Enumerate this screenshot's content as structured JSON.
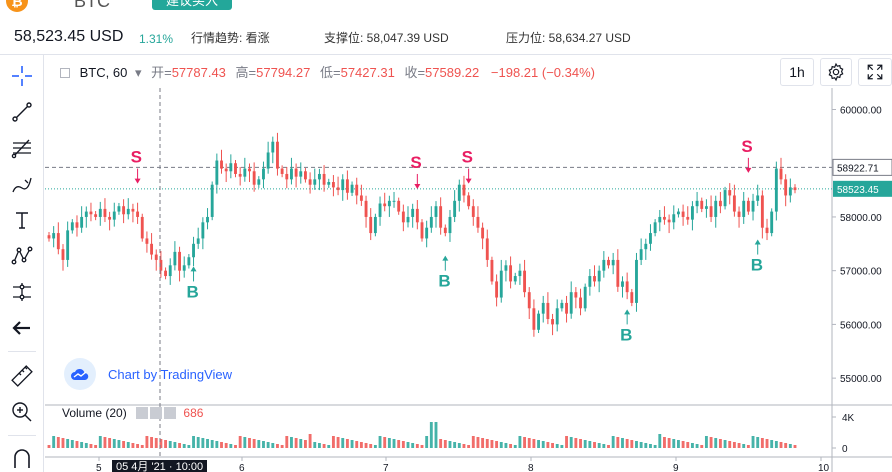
{
  "header": {
    "coin_symbol": "BTC",
    "coin_icon": "bitcoin-icon",
    "advice_badge": "建议买入",
    "price": "58,523.45 USD",
    "change": "1.31%",
    "trend_label": "行情趋势: 看涨",
    "support_label": "支撑位: 58,047.39 USD",
    "resistance_label": "压力位: 58,634.27 USD"
  },
  "legend": {
    "symbol": "BTC, 60",
    "open_label": "开=",
    "open": "57787.43",
    "high_label": "高=",
    "high": "57794.27",
    "low_label": "低=",
    "low": "57427.31",
    "close_label": "收=",
    "close": "57589.22",
    "change": "−198.21 (−0.34%)"
  },
  "controls": {
    "interval": "1h"
  },
  "branding": {
    "text": "Chart by TradingView"
  },
  "volume": {
    "label": "Volume (20)",
    "value": "686"
  },
  "crosshair": {
    "time_label": "05 4月 '21 · 10:00"
  },
  "colors": {
    "up": "#26a69a",
    "down": "#ef5350",
    "signal_sell": "#e91e63",
    "signal_buy": "#26a69a",
    "accent": "#2962ff"
  },
  "toolbar": [
    "crosshair-icon",
    "trend-line-icon",
    "fib-icon",
    "brush-icon",
    "text-icon",
    "pattern-icon",
    "measure-icon",
    "back-arrow-icon",
    "ruler-icon",
    "zoom-in-icon",
    "magnet-icon"
  ],
  "chart_data": {
    "type": "candlestick",
    "interval": "1h",
    "x_ticks": [
      "5",
      "6",
      "7",
      "8",
      "9",
      "10"
    ],
    "y_ticks": [
      "60000.00",
      "59000.00",
      "58000.00",
      "57000.00",
      "56000.00",
      "55000.00"
    ],
    "ylim": [
      54500,
      60400
    ],
    "price_labels": {
      "last": "58523.45",
      "marker": "58922.71"
    },
    "last_price": 58523.45,
    "marker_price": 58922.71,
    "volume_ticks": [
      "4K",
      "0"
    ],
    "signal_labels": {
      "sell": "S",
      "buy": "B"
    },
    "closes": [
      57600,
      57700,
      57400,
      57200,
      57750,
      57900,
      57800,
      58000,
      58100,
      58050,
      58000,
      58150,
      58000,
      57950,
      58100,
      58200,
      58050,
      58150,
      58100,
      58000,
      57600,
      57500,
      57300,
      57200,
      57000,
      56900,
      57100,
      57350,
      57000,
      57100,
      57250,
      57500,
      57600,
      57900,
      58000,
      58600,
      59050,
      58900,
      58850,
      59000,
      58800,
      58750,
      58900,
      58850,
      58600,
      58700,
      58900,
      59200,
      59400,
      58900,
      58800,
      58700,
      58900,
      58750,
      58850,
      58700,
      58600,
      58700,
      58800,
      58600,
      58650,
      58550,
      58500,
      58700,
      58450,
      58600,
      58400,
      58300,
      58000,
      57700,
      58000,
      58250,
      58200,
      58300,
      58300,
      58100,
      57900,
      58000,
      58150,
      57900,
      57600,
      57800,
      58000,
      58200,
      57800,
      57700,
      58000,
      58300,
      58600,
      58400,
      58200,
      58000,
      57800,
      57600,
      57200,
      56800,
      56500,
      57000,
      57100,
      56800,
      56900,
      57000,
      56600,
      56300,
      55900,
      56200,
      56400,
      56100,
      56000,
      56300,
      56400,
      56200,
      56600,
      56500,
      56300,
      56700,
      56900,
      56800,
      57000,
      57200,
      57100,
      57200,
      56700,
      56800,
      56600,
      56400,
      57200,
      57400,
      57500,
      57700,
      57900,
      58000,
      57950,
      57900,
      58050,
      58100,
      58000,
      57950,
      58200,
      58300,
      58150,
      58200,
      58000,
      58300,
      58200,
      58500,
      58400,
      58100,
      58000,
      58300,
      58100,
      58300,
      58400,
      57800,
      57700,
      58100,
      58900,
      58700,
      58400,
      58550,
      58500
    ],
    "sell_signals": [
      {
        "index": 19,
        "price": 58900
      },
      {
        "index": 79,
        "price": 58800
      },
      {
        "index": 90,
        "price": 58900
      },
      {
        "index": 150,
        "price": 59100
      }
    ],
    "buy_signals": [
      {
        "index": 31,
        "price": 56800
      },
      {
        "index": 85,
        "price": 57000
      },
      {
        "index": 124,
        "price": 56000
      },
      {
        "index": 152,
        "price": 57300
      }
    ]
  }
}
